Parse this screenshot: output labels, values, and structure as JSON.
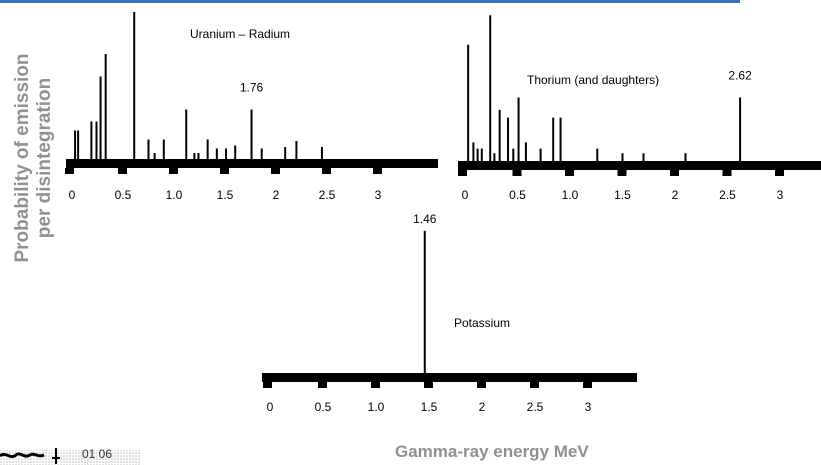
{
  "ylabel_lines": [
    "Probability of emission",
    "per disintegration"
  ],
  "xlabel": "Gamma-ray energy MeV",
  "footer_text": "01  06",
  "chart_data": [
    {
      "type": "bar",
      "title": "Uranium –  Radium",
      "annotation": "1.76",
      "annotation_x": 1.76,
      "x_ticks": [
        "0",
        "0.5",
        "1.0",
        "1.5",
        "2",
        "2.5",
        "3"
      ],
      "xlim": [
        0,
        3.2
      ],
      "ylim": [
        0,
        1
      ],
      "line_color": "#000000",
      "x": [
        0.03,
        0.06,
        0.19,
        0.24,
        0.28,
        0.33,
        0.61,
        0.75,
        0.81,
        0.9,
        1.12,
        1.2,
        1.24,
        1.33,
        1.42,
        1.51,
        1.6,
        1.76,
        1.86,
        2.09,
        2.2,
        2.45
      ],
      "values": [
        0.19,
        0.19,
        0.25,
        0.25,
        0.55,
        0.7,
        0.98,
        0.13,
        0.04,
        0.13,
        0.33,
        0.04,
        0.04,
        0.13,
        0.07,
        0.07,
        0.09,
        0.33,
        0.07,
        0.08,
        0.12,
        0.08
      ]
    },
    {
      "type": "bar",
      "title": "Thorium (and daughters)",
      "annotation": "2.62",
      "annotation_x": 2.62,
      "x_ticks": [
        "0",
        "0.5",
        "1.0",
        "1.5",
        "2",
        "2.5",
        "3"
      ],
      "xlim": [
        0,
        3.2
      ],
      "ylim": [
        0,
        1
      ],
      "line_color": "#000000",
      "x": [
        0.03,
        0.08,
        0.12,
        0.16,
        0.24,
        0.28,
        0.33,
        0.41,
        0.46,
        0.51,
        0.58,
        0.72,
        0.84,
        0.91,
        1.26,
        1.5,
        1.7,
        2.1,
        2.62
      ],
      "values": [
        0.75,
        0.12,
        0.08,
        0.08,
        0.94,
        0.05,
        0.33,
        0.28,
        0.08,
        0.41,
        0.12,
        0.08,
        0.28,
        0.28,
        0.08,
        0.05,
        0.05,
        0.05,
        0.41
      ]
    },
    {
      "type": "bar",
      "title": "Potassium",
      "annotation": "1.46",
      "annotation_x": 1.46,
      "x_ticks": [
        "0",
        "0.5",
        "1.0",
        "1.5",
        "2",
        "2.5",
        "3"
      ],
      "xlim": [
        0,
        3.2
      ],
      "ylim": [
        0,
        1
      ],
      "line_color": "#000000",
      "x": [
        1.46
      ],
      "values": [
        0.98
      ]
    }
  ]
}
